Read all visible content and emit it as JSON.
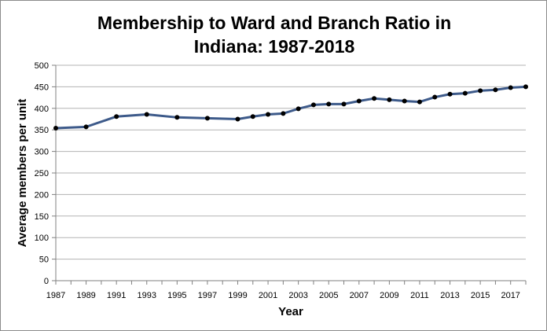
{
  "chart_data": {
    "type": "line",
    "title": "Membership to Ward and Branch Ratio in Indiana: 1987-2018",
    "title_lines": [
      "Membership to Ward and Branch Ratio in",
      "Indiana: 1987-2018"
    ],
    "xlabel": "Year",
    "ylabel": "Average members per unit",
    "xlim": [
      1987,
      2018
    ],
    "ylim": [
      0,
      500
    ],
    "y_ticks": [
      0,
      50,
      100,
      150,
      200,
      250,
      300,
      350,
      400,
      450,
      500
    ],
    "x_tick_labels": [
      "1987",
      "1989",
      "1991",
      "1993",
      "1995",
      "1997",
      "1999",
      "2001",
      "2003",
      "2005",
      "2007",
      "2009",
      "2011",
      "2013",
      "2015",
      "2017"
    ],
    "grid": "horizontal",
    "legend": "none",
    "series": [
      {
        "color": "#3d5a8a",
        "marker_color": "#000000",
        "points": [
          {
            "x": 1987,
            "y": 354
          },
          {
            "x": 1989,
            "y": 357
          },
          {
            "x": 1991,
            "y": 381
          },
          {
            "x": 1993,
            "y": 386
          },
          {
            "x": 1995,
            "y": 379
          },
          {
            "x": 1997,
            "y": 377
          },
          {
            "x": 1999,
            "y": 375
          },
          {
            "x": 2000,
            "y": 381
          },
          {
            "x": 2001,
            "y": 386
          },
          {
            "x": 2002,
            "y": 388
          },
          {
            "x": 2003,
            "y": 399
          },
          {
            "x": 2004,
            "y": 408
          },
          {
            "x": 2005,
            "y": 410
          },
          {
            "x": 2006,
            "y": 410
          },
          {
            "x": 2007,
            "y": 417
          },
          {
            "x": 2008,
            "y": 423
          },
          {
            "x": 2009,
            "y": 420
          },
          {
            "x": 2010,
            "y": 417
          },
          {
            "x": 2011,
            "y": 415
          },
          {
            "x": 2012,
            "y": 426
          },
          {
            "x": 2013,
            "y": 433
          },
          {
            "x": 2014,
            "y": 435
          },
          {
            "x": 2015,
            "y": 441
          },
          {
            "x": 2016,
            "y": 443
          },
          {
            "x": 2017,
            "y": 448
          },
          {
            "x": 2018,
            "y": 450
          }
        ]
      }
    ]
  }
}
